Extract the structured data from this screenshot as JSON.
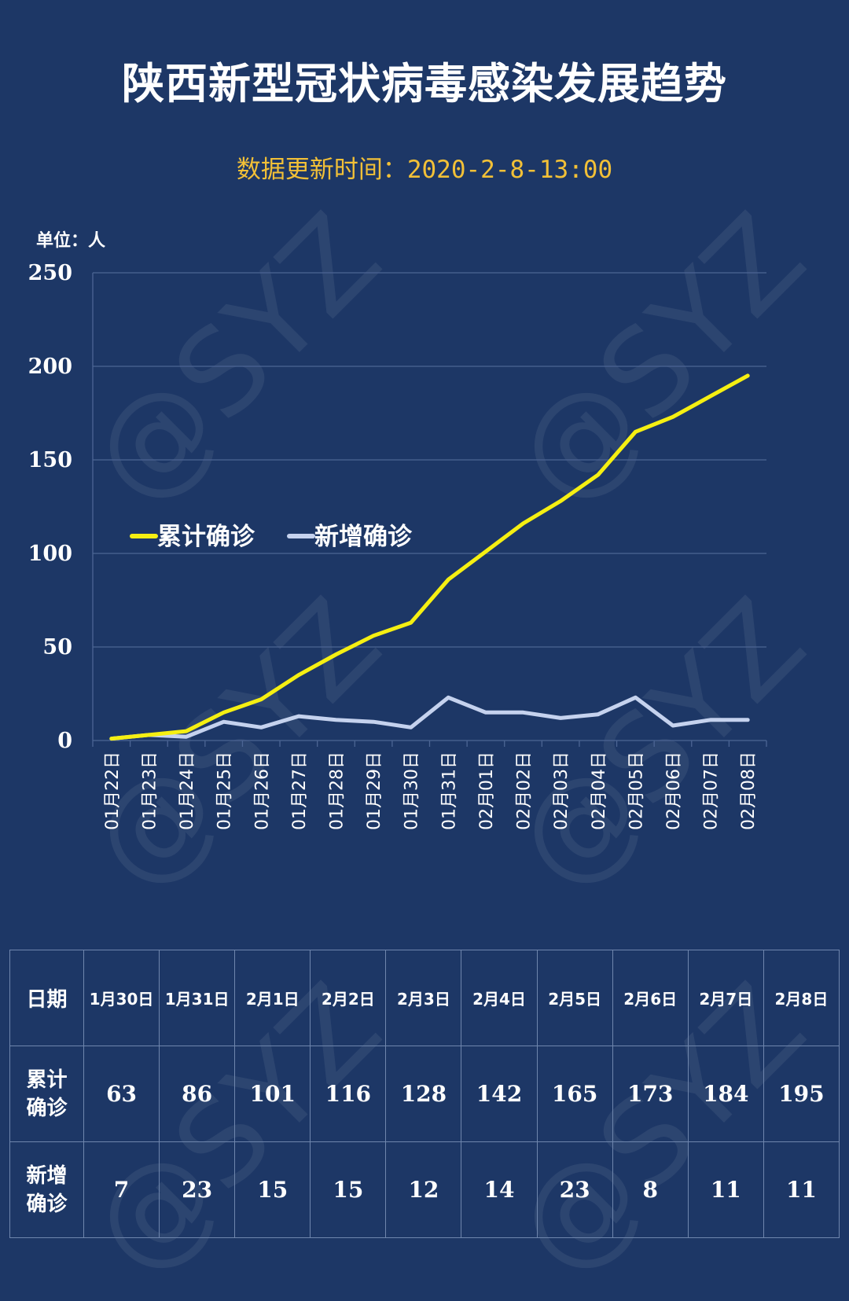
{
  "title": "陕西新型冠状病毒感染发展趋势",
  "subtitle": "数据更新时间：2020-2-8-13:00",
  "unit_label": "单位：人",
  "watermark": "@SYZ",
  "colors": {
    "background": "#1d3766",
    "cumulative": "#f5ef12",
    "new": "#c5d2ee",
    "subtitle": "#f2c037",
    "grid": "#4c6594"
  },
  "chart_data": {
    "type": "line",
    "categories": [
      "01月22日",
      "01月23日",
      "01月24日",
      "01月25日",
      "01月26日",
      "01月27日",
      "01月28日",
      "01月29日",
      "01月30日",
      "01月31日",
      "02月01日",
      "02月02日",
      "02月03日",
      "02月04日",
      "02月05日",
      "02月06日",
      "02月07日",
      "02月08日"
    ],
    "series": [
      {
        "name": "累计确诊",
        "values": [
          1,
          3,
          5,
          15,
          22,
          35,
          46,
          56,
          63,
          86,
          101,
          116,
          128,
          142,
          165,
          173,
          184,
          195
        ]
      },
      {
        "name": "新增确诊",
        "values": [
          1,
          3,
          2,
          10,
          7,
          13,
          11,
          10,
          7,
          23,
          15,
          15,
          12,
          14,
          23,
          8,
          11,
          11
        ]
      }
    ],
    "ylim": [
      0,
      250
    ],
    "yticks": [
      0,
      50,
      100,
      150,
      200,
      250
    ],
    "grid": true,
    "legend_position": "middle-left"
  },
  "table": {
    "header_label": "日期",
    "dates": [
      "1月30日",
      "1月31日",
      "2月1日",
      "2月2日",
      "2月3日",
      "2月4日",
      "2月5日",
      "2月6日",
      "2月7日",
      "2月8日"
    ],
    "rows": [
      {
        "label_line1": "累计",
        "label_line2": "确诊",
        "values": [
          "63",
          "86",
          "101",
          "116",
          "128",
          "142",
          "165",
          "173",
          "184",
          "195"
        ]
      },
      {
        "label_line1": "新增",
        "label_line2": "确诊",
        "values": [
          "7",
          "23",
          "15",
          "15",
          "12",
          "14",
          "23",
          "8",
          "11",
          "11"
        ]
      }
    ]
  }
}
